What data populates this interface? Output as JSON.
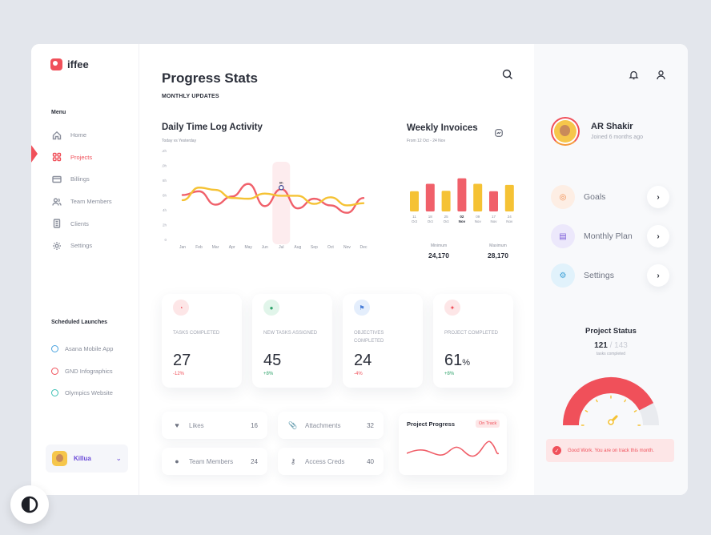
{
  "brand": {
    "name": "iffee",
    "accent": "#f0505a"
  },
  "sidebar": {
    "menu_title": "Menu",
    "items": [
      {
        "label": "Home",
        "icon": "home-icon"
      },
      {
        "label": "Projects",
        "icon": "grid-icon",
        "active": true
      },
      {
        "label": "Billings",
        "icon": "card-icon"
      },
      {
        "label": "Team Members",
        "icon": "users-icon"
      },
      {
        "label": "Clients",
        "icon": "building-icon"
      },
      {
        "label": "Settings",
        "icon": "gear-icon"
      }
    ],
    "scheduled_title": "Scheduled Launches",
    "scheduled": [
      {
        "label": "Asana Mobile App",
        "color": "#4aa3df"
      },
      {
        "label": "GND Infographics",
        "color": "#f0505a"
      },
      {
        "label": "Olympics Website",
        "color": "#3cc0b4"
      }
    ],
    "user": {
      "name": "Killua"
    }
  },
  "main": {
    "title": "Progress Stats",
    "subtitle": "MONTHLY UPDATES",
    "time_log": {
      "title": "Daily Time Log Activity",
      "subtitle": "Today vs Yesterday"
    },
    "invoices": {
      "title": "Weekly Invoices",
      "subtitle": "From 12 Oct - 24 Nov",
      "min_label": "Minimum",
      "min_value": "24,170",
      "max_label": "Maximum",
      "max_value": "28,170"
    },
    "cards": [
      {
        "label": "TASKS COMPLETED",
        "value": "27",
        "unit": "",
        "delta": "-12%",
        "delta_color": "#f0505a",
        "icon": "pie-icon",
        "icon_bg": "#fde6e7",
        "icon_color": "#f0505a"
      },
      {
        "label": "NEW TASKS ASSIGNED",
        "value": "45",
        "unit": "",
        "delta": "+8%",
        "delta_color": "#2fa36b",
        "icon": "leaf-icon",
        "icon_bg": "#e1f5ea",
        "icon_color": "#2fa36b"
      },
      {
        "label": "OBJECTIVES COMPLETED",
        "value": "24",
        "unit": "",
        "delta": "-4%",
        "delta_color": "#f0505a",
        "icon": "flag-icon",
        "icon_bg": "#e4eefc",
        "icon_color": "#4a7fd8"
      },
      {
        "label": "PROJECT COMPLETED",
        "value": "61",
        "unit": "%",
        "delta": "+8%",
        "delta_color": "#2fa36b",
        "icon": "sparkle-icon",
        "icon_bg": "#fde6e7",
        "icon_color": "#f0505a"
      }
    ],
    "mini": [
      {
        "label": "Likes",
        "count": "16",
        "icon": "like-icon"
      },
      {
        "label": "Attachments",
        "count": "32",
        "icon": "paperclip-icon"
      },
      {
        "label": "Team Members",
        "count": "24",
        "icon": "person-icon"
      },
      {
        "label": "Access Creds",
        "count": "40",
        "icon": "key-icon"
      }
    ],
    "project_progress": {
      "title": "Project Progress",
      "badge": "On Track"
    }
  },
  "chart_data": [
    {
      "type": "line",
      "title": "Daily Time Log Activity",
      "subtitle": "Today vs Yesterday",
      "x": [
        "Jan",
        "Feb",
        "Mar",
        "Apr",
        "May",
        "Jun",
        "Jul",
        "Aug",
        "Sep",
        "Oct",
        "Nov",
        "Dec"
      ],
      "yticks": [
        "0",
        "2h",
        "4h",
        "6h",
        "8h",
        "10h",
        "12h"
      ],
      "ylim": [
        0,
        12
      ],
      "series": [
        {
          "values": [
            6,
            6.5,
            4.7,
            5.8,
            7.5,
            4.5,
            6.8,
            4.2,
            5.5,
            4.6,
            3.6,
            5.6
          ],
          "color": "#f0606a"
        },
        {
          "values": [
            5.3,
            7.0,
            6.7,
            5.6,
            5.5,
            6.2,
            5.9,
            5.9,
            4.8,
            5.7,
            4.6,
            4.9
          ],
          "color": "#f5c234"
        }
      ],
      "highlight": {
        "x": "Jul",
        "value": "6h"
      }
    },
    {
      "type": "bar",
      "title": "Weekly Invoices",
      "categories": [
        "11 Oct",
        "18 Oct",
        "25 Oct",
        "02 Nov",
        "09 Nov",
        "17 Nov",
        "24 Nov"
      ],
      "values": [
        5.5,
        7.5,
        5.6,
        9.0,
        7.5,
        5.5,
        7.2
      ],
      "colors": [
        "#f5c234",
        "#f0606a",
        "#f5c234",
        "#f0606a",
        "#f5c234",
        "#f0606a",
        "#f5c234"
      ],
      "highlight": "02 Nov"
    }
  ],
  "right": {
    "user": {
      "name": "AR Shakir",
      "sub": "Joined 6 months ago"
    },
    "nav": [
      {
        "label": "Goals",
        "icon": "target-icon",
        "bg": "#fdeee4",
        "color": "#f08a4b"
      },
      {
        "label": "Monthly Plan",
        "icon": "calendar-icon",
        "bg": "#ece8fb",
        "color": "#7a5ad8"
      },
      {
        "label": "Settings",
        "icon": "gear-icon",
        "bg": "#e1f2fb",
        "color": "#3a9fd6"
      }
    ],
    "status": {
      "title": "Project Status",
      "done": "121",
      "sep": " / ",
      "total": "143",
      "sub": "tasks completed",
      "fraction": 0.846
    },
    "note": "Good Work. You are on track this month."
  }
}
